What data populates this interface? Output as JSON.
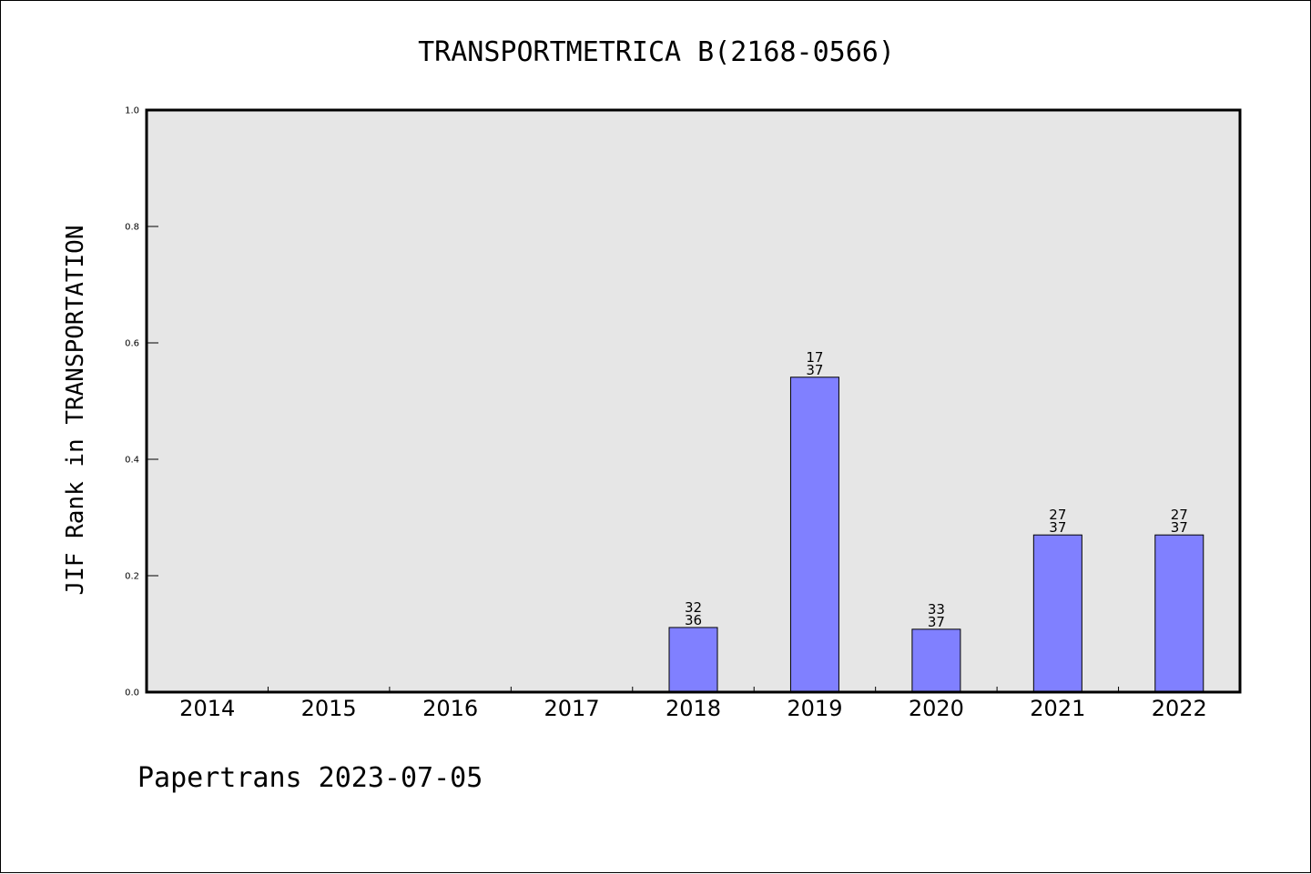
{
  "chart_data": {
    "type": "bar",
    "title": "TRANSPORTMETRICA B(2168-0566)",
    "ylabel": "JIF Rank in TRANSPORTATION",
    "xlabel": "",
    "categories": [
      "2014",
      "2015",
      "2016",
      "2017",
      "2018",
      "2019",
      "2020",
      "2021",
      "2022"
    ],
    "values": [
      null,
      null,
      null,
      null,
      0.111,
      0.541,
      0.108,
      0.27,
      0.27
    ],
    "rank_labels": [
      null,
      null,
      null,
      null,
      {
        "rank": "32",
        "total": "36"
      },
      {
        "rank": "17",
        "total": "37"
      },
      {
        "rank": "33",
        "total": "37"
      },
      {
        "rank": "27",
        "total": "37"
      },
      {
        "rank": "27",
        "total": "37"
      }
    ],
    "ylim": [
      0,
      1.0
    ],
    "yticks": [
      "0.0",
      "0.2",
      "0.4",
      "0.6",
      "0.8",
      "1.0"
    ],
    "grid": false,
    "bar_color": "#8080ff",
    "plot_background": "#e6e6e6"
  },
  "footer": "Papertrans 2023-07-05"
}
